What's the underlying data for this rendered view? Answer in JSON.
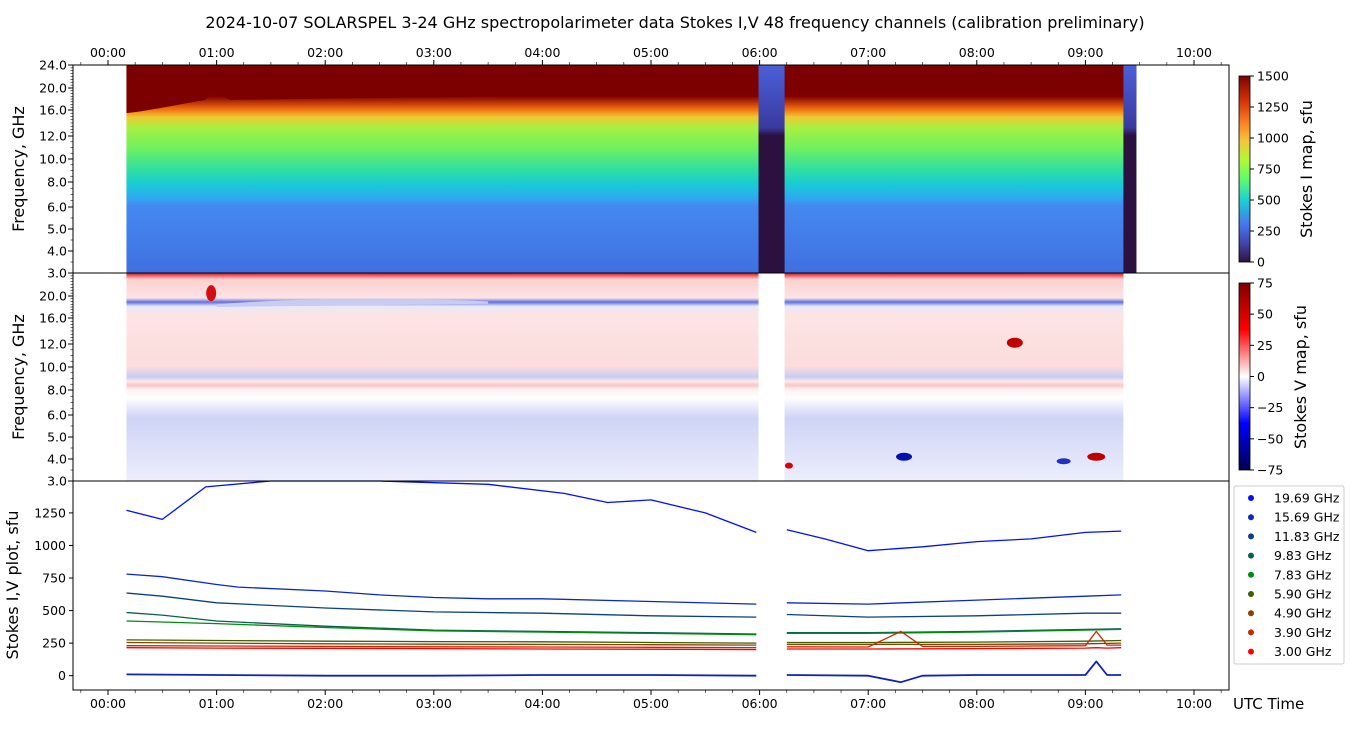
{
  "chart_data": {
    "type": "heatmap",
    "title": "2024-10-07  SOLARSPEL  3-24 GHz spectropolarimeter data   Stokes I,V   48 frequency channels   (calibration preliminary)",
    "time_ticks": [
      "00:00",
      "01:00",
      "02:00",
      "03:00",
      "04:00",
      "05:00",
      "06:00",
      "07:00",
      "08:00",
      "09:00",
      "10:00"
    ],
    "xlabel": "UTC Time",
    "xlim_hours": [
      -0.33,
      10.32
    ],
    "data_range_hours": [
      0.17,
      9.47
    ],
    "gaps_hours": [
      [
        5.99,
        6.23
      ],
      [
        9.35,
        9.47
      ]
    ],
    "panels": [
      {
        "name": "stokes-i-map",
        "ylabel": "Frequency, GHz",
        "yticks": [
          "3.0",
          "4.0",
          "5.0",
          "6.0",
          "8.0",
          "10.0",
          "12.0",
          "16.0",
          "20.0",
          "24.0"
        ],
        "ylim": [
          3.0,
          24.0
        ],
        "colorbar": {
          "label": "Stokes I map, sfu",
          "ticks": [
            "0",
            "250",
            "500",
            "750",
            "1000",
            "1250",
            "1500"
          ],
          "range": [
            0,
            1500
          ]
        }
      },
      {
        "name": "stokes-v-map",
        "ylabel": "Frequency, GHz",
        "yticks": [
          "3.0",
          "4.0",
          "5.0",
          "6.0",
          "8.0",
          "10.0",
          "12.0",
          "16.0",
          "20.0"
        ],
        "ylim": [
          3.0,
          24.0
        ],
        "colorbar": {
          "label": "Stokes V map, sfu",
          "ticks": [
            "−75",
            "−50",
            "−25",
            "0",
            "25",
            "50",
            "75"
          ],
          "range": [
            -75,
            75
          ]
        }
      },
      {
        "name": "stokes-iv-plot",
        "type": "line",
        "ylabel": "Stokes I,V plot, sfu",
        "yticks": [
          "0",
          "250",
          "500",
          "750",
          "1000",
          "1250"
        ],
        "ylim": [
          -110,
          1495
        ],
        "legend_position": "outside-right",
        "series": [
          {
            "name": "19.69 GHz",
            "color": "#0010ff",
            "x": [
              0.17,
              0.5,
              0.9,
              1.5,
              2.5,
              3.5,
              4.2,
              4.6,
              5.0,
              5.5,
              5.97,
              6.25,
              6.6,
              7.0,
              7.5,
              8.0,
              8.5,
              9.0,
              9.33
            ],
            "y": [
              1270,
              1200,
              1450,
              1520,
              1520,
              1470,
              1400,
              1330,
              1350,
              1250,
              1100,
              1120,
              1050,
              960,
              990,
              1030,
              1050,
              1100,
              1110
            ]
          },
          {
            "name": "15.69 GHz",
            "color": "#0a28c8",
            "x": [
              0.17,
              0.5,
              1.0,
              1.2,
              2.0,
              2.5,
              3.0,
              3.5,
              4.0,
              5.0,
              5.97,
              6.25,
              7.0,
              8.0,
              9.0,
              9.33
            ],
            "y": [
              780,
              760,
              700,
              680,
              650,
              620,
              600,
              590,
              590,
              570,
              550,
              560,
              550,
              580,
              610,
              620
            ]
          },
          {
            "name": "11.83 GHz",
            "color": "#0c4080",
            "x": [
              0.17,
              0.5,
              1.0,
              2.0,
              3.0,
              4.0,
              5.0,
              5.97,
              6.25,
              7.0,
              8.0,
              9.0,
              9.33
            ],
            "y": [
              635,
              610,
              560,
              520,
              490,
              480,
              460,
              450,
              470,
              450,
              460,
              480,
              480
            ]
          },
          {
            "name": "9.83 GHz",
            "color": "#0a6050",
            "x": [
              0.17,
              0.5,
              1.0,
              2.0,
              3.0,
              4.0,
              5.0,
              5.97,
              6.25,
              7.0,
              8.0,
              9.0,
              9.33
            ],
            "y": [
              485,
              465,
              420,
              380,
              350,
              340,
              330,
              320,
              330,
              330,
              340,
              355,
              360
            ]
          },
          {
            "name": "7.83 GHz",
            "color": "#008c10",
            "x": [
              0.17,
              1.0,
              2.0,
              3.0,
              4.0,
              5.0,
              5.97,
              6.25,
              7.0,
              8.0,
              9.0,
              9.33
            ],
            "y": [
              420,
              400,
              370,
              345,
              335,
              325,
              315,
              325,
              325,
              335,
              350,
              355
            ]
          },
          {
            "name": "5.90 GHz",
            "color": "#3c6000",
            "x": [
              0.17,
              1.0,
              2.0,
              3.0,
              4.0,
              5.0,
              5.97,
              6.25,
              7.0,
              8.0,
              9.0,
              9.33
            ],
            "y": [
              275,
              270,
              265,
              262,
              260,
              255,
              250,
              255,
              255,
              258,
              265,
              270
            ]
          },
          {
            "name": "4.90 GHz",
            "color": "#8c4000",
            "x": [
              0.17,
              1.0,
              2.0,
              3.0,
              4.0,
              5.0,
              5.97,
              6.25,
              7.0,
              8.0,
              9.0,
              9.33
            ],
            "y": [
              255,
              250,
              245,
              242,
              240,
              238,
              235,
              240,
              240,
              240,
              245,
              250
            ]
          },
          {
            "name": "3.90 GHz",
            "color": "#c82800",
            "x": [
              0.17,
              1.0,
              2.0,
              3.0,
              4.0,
              5.0,
              5.97,
              6.25,
              7.0,
              7.3,
              7.5,
              8.0,
              9.0,
              9.1,
              9.2,
              9.33
            ],
            "y": [
              230,
              228,
              225,
              222,
              220,
              218,
              215,
              222,
              220,
              340,
              225,
              225,
              230,
              340,
              235,
              235
            ]
          },
          {
            "name": "3.00 GHz",
            "color": "#ff0000",
            "x": [
              0.17,
              1.0,
              2.0,
              3.0,
              4.0,
              5.0,
              5.97,
              6.25,
              7.0,
              8.0,
              9.0,
              9.1,
              9.2,
              9.33
            ],
            "y": [
              215,
              212,
              210,
              208,
              205,
              203,
              200,
              205,
              205,
              208,
              212,
              215,
              212,
              215
            ]
          }
        ],
        "stokes_v_series": {
          "name": "Stokes V",
          "color": "#1020c0",
          "x": [
            0.17,
            1.0,
            2.0,
            3.0,
            4.0,
            5.0,
            5.97,
            6.25,
            7.0,
            7.3,
            7.5,
            8.0,
            9.0,
            9.1,
            9.2,
            9.33
          ],
          "y": [
            10,
            5,
            0,
            0,
            5,
            5,
            0,
            5,
            0,
            -50,
            0,
            5,
            5,
            110,
            5,
            5
          ]
        }
      }
    ]
  }
}
